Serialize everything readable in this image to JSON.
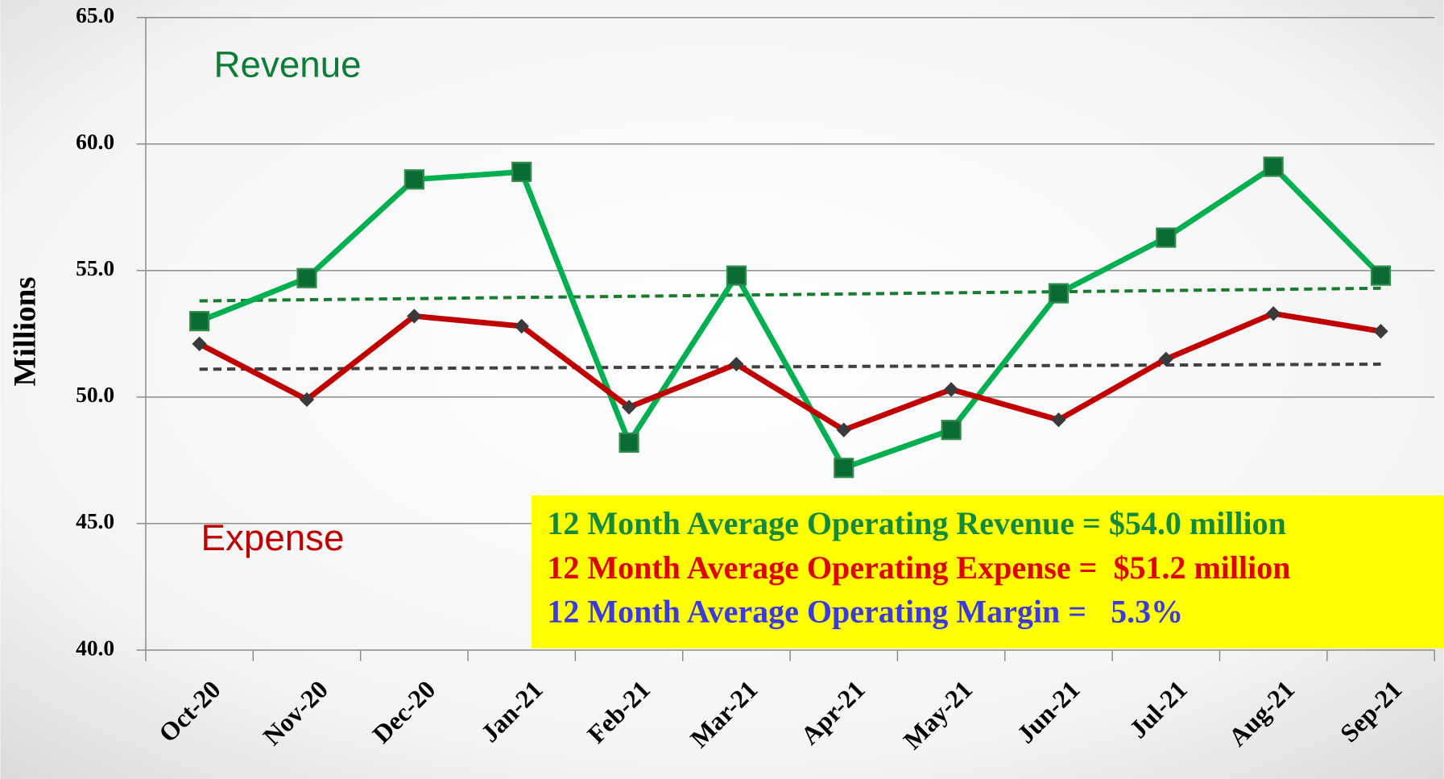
{
  "chart_data": {
    "type": "line",
    "y_label": "Millions",
    "categories": [
      "Oct-20",
      "Nov-20",
      "Dec-20",
      "Jan-21",
      "Feb-21",
      "Mar-21",
      "Apr-21",
      "May-21",
      "Jun-21",
      "Jul-21",
      "Aug-21",
      "Sep-21"
    ],
    "series": [
      {
        "name": "Revenue",
        "color": "#00b050",
        "marker": "square",
        "marker_color": "#0b6b34",
        "values": [
          53.0,
          54.7,
          58.6,
          58.9,
          48.2,
          54.8,
          47.2,
          48.7,
          54.1,
          56.3,
          59.1,
          54.8
        ]
      },
      {
        "name": "Expense",
        "color": "#c00000",
        "marker": "diamond",
        "marker_color": "#3a3a3a",
        "values": [
          52.1,
          49.9,
          53.2,
          52.8,
          49.6,
          51.3,
          48.7,
          50.3,
          49.1,
          51.5,
          53.3,
          52.6
        ]
      }
    ],
    "trendlines": [
      {
        "color": "#1a7a2e",
        "values": [
          53.8,
          54.3
        ]
      },
      {
        "color": "#404040",
        "values": [
          51.1,
          51.3
        ]
      }
    ],
    "series_label_colors": [
      "#0a7d36",
      "#c00000"
    ],
    "ylim": [
      40,
      65
    ],
    "yticks": [
      {
        "value": 40,
        "label": "40.0"
      },
      {
        "value": 45,
        "label": "45.0"
      },
      {
        "value": 50,
        "label": "50.0"
      },
      {
        "value": 55,
        "label": "55.0"
      },
      {
        "value": 60,
        "label": "60.0"
      },
      {
        "value": 65,
        "label": "65.0"
      }
    ],
    "grid": true,
    "note_box_color": "#ffff00",
    "note_lines": [
      {
        "text": "12 Month Average Operating Revenue = $54.0 million",
        "color": "#138a3a"
      },
      {
        "text": "12 Month Average Operating Expense =  $51.2 million",
        "color": "#e00000"
      },
      {
        "text": "12 Month Average Operating Margin =   5.3%",
        "color": "#3a3ae0"
      }
    ]
  }
}
